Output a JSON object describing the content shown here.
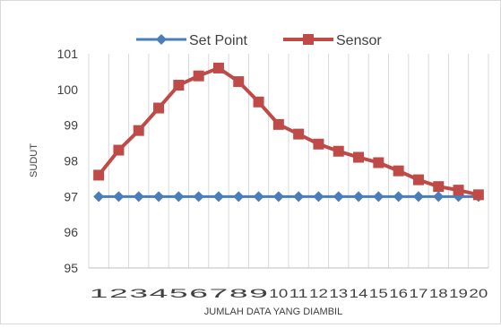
{
  "chart_data": {
    "type": "line",
    "title": "",
    "xlabel": "JUMLAH DATA YANG DIAMBIL",
    "ylabel": "SUDUT",
    "categories": [
      "1",
      "2",
      "3",
      "4",
      "5",
      "6",
      "7",
      "8",
      "9",
      "10",
      "11",
      "12",
      "13",
      "14",
      "15",
      "16",
      "17",
      "18",
      "19",
      "20"
    ],
    "x_tick_labels": [
      "1",
      "2",
      "3",
      "4",
      "5",
      "6",
      "7",
      "8",
      "9",
      "10",
      "11",
      "12",
      "13",
      "14",
      "15",
      "16",
      "17",
      "18",
      "19",
      "20"
    ],
    "ylim": [
      95,
      101
    ],
    "y_ticks": [
      95,
      96,
      97,
      98,
      99,
      100,
      101
    ],
    "grid": "vertical",
    "legend_position": "top",
    "series": [
      {
        "name": "Set Point",
        "color": "#4a7ebb",
        "marker": "diamond",
        "values": [
          97,
          97,
          97,
          97,
          97,
          97,
          97,
          97,
          97,
          97,
          97,
          97,
          97,
          97,
          97,
          97,
          97,
          97,
          97,
          97
        ]
      },
      {
        "name": "Sensor",
        "color": "#be4b48",
        "marker": "square",
        "values": [
          97.6,
          98.3,
          98.85,
          99.48,
          100.12,
          100.38,
          100.6,
          100.22,
          99.65,
          99.02,
          98.75,
          98.47,
          98.27,
          98.1,
          97.95,
          97.72,
          97.47,
          97.28,
          97.18,
          97.05
        ]
      }
    ]
  }
}
